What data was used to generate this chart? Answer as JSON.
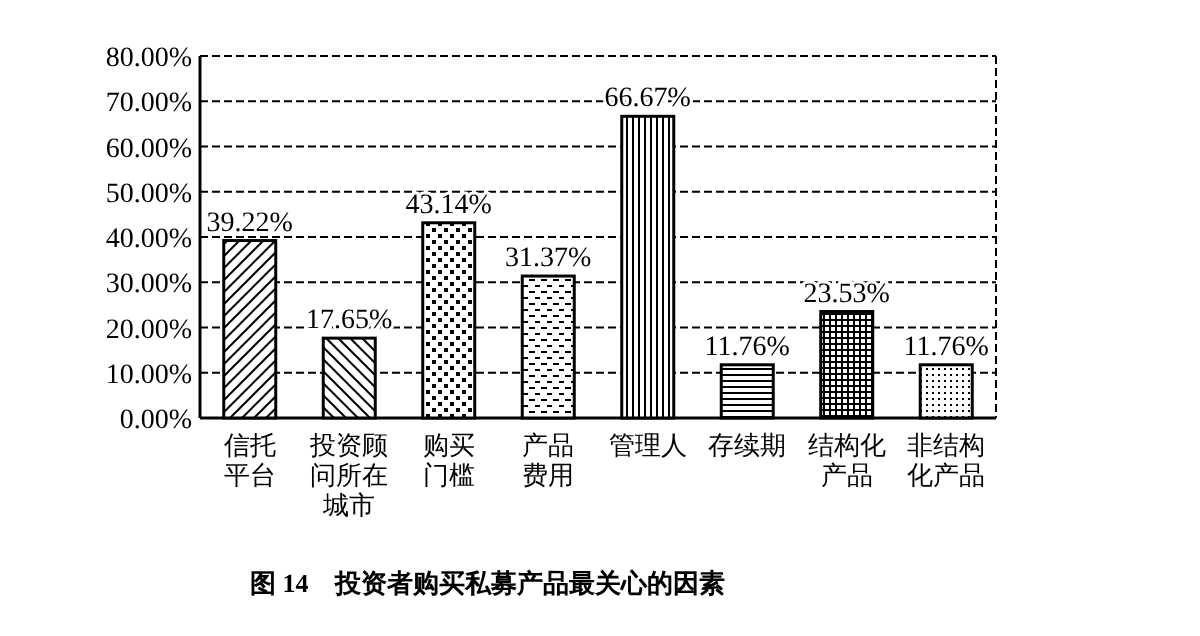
{
  "chart_data": {
    "type": "bar",
    "title": "图 14　投资者购买私募产品最关心的因素",
    "categories": [
      "信托平台",
      "投资顾问所在城市",
      "购买门槛",
      "产品费用",
      "管理人",
      "存续期",
      "结构化产品",
      "非结构化产品"
    ],
    "values": [
      39.22,
      17.65,
      43.14,
      31.37,
      66.67,
      11.76,
      23.53,
      11.76
    ],
    "value_labels": [
      "39.22%",
      "17.65%",
      "43.14%",
      "31.37%",
      "66.67%",
      "11.76%",
      "23.53%",
      "11.76%"
    ],
    "color": "#000000",
    "ylim": [
      0,
      80
    ],
    "yticks": [
      {
        "value": 0,
        "label": "0.00%"
      },
      {
        "value": 10,
        "label": "10.00%"
      },
      {
        "value": 20,
        "label": "20.00%"
      },
      {
        "value": 30,
        "label": "30.00%"
      },
      {
        "value": 40,
        "label": "40.00%"
      },
      {
        "value": 50,
        "label": "50.00%"
      },
      {
        "value": 60,
        "label": "60.00%"
      },
      {
        "value": 70,
        "label": "70.00%"
      },
      {
        "value": 80,
        "label": "80.00%"
      }
    ],
    "grid": "y"
  }
}
